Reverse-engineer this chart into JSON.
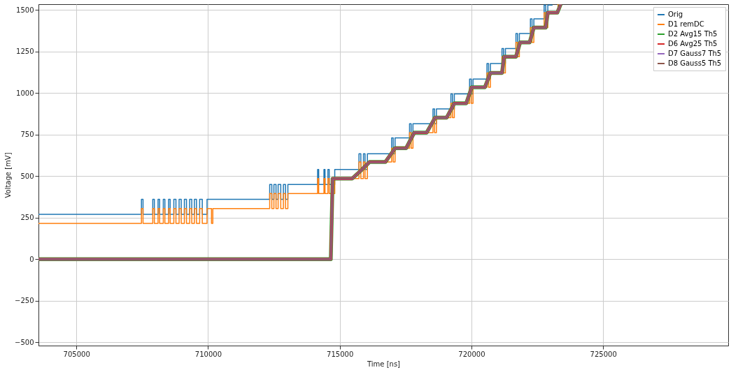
{
  "chart_data": {
    "type": "line",
    "xlabel": "Time [ns]",
    "ylabel": "Voltage [mV]",
    "xlim": [
      703560,
      729750
    ],
    "ylim": [
      -520,
      1535
    ],
    "xticks": [
      705000,
      710000,
      715000,
      720000,
      725000
    ],
    "yticks": [
      -500,
      -250,
      0,
      250,
      500,
      750,
      1000,
      1250,
      1500
    ],
    "grid": true,
    "legend": "top right",
    "marker": "none",
    "series": [
      {
        "name": "Orig",
        "color": "#1f77b4",
        "x": [
          703560,
          707470,
          707470,
          707530,
          707530,
          707900,
          707900,
          707960,
          707960,
          708100,
          708100,
          708160,
          708160,
          708300,
          708300,
          708360,
          708360,
          708500,
          708500,
          708560,
          708560,
          708700,
          708700,
          708780,
          708780,
          708900,
          708900,
          708980,
          708980,
          709100,
          709100,
          709180,
          709180,
          709300,
          709300,
          709380,
          709380,
          709480,
          709480,
          709560,
          709560,
          709680,
          709680,
          709780,
          709780,
          709960,
          709960,
          712340,
          712340,
          712420,
          712420,
          712500,
          712500,
          712580,
          712580,
          712660,
          712660,
          712760,
          712760,
          712860,
          712860,
          712940,
          712940,
          713030,
          713030,
          714160,
          714160,
          714200,
          714200,
          714400,
          714400,
          714440,
          714440,
          714550,
          714550,
          714600,
          714600,
          714810,
          714810,
          715730,
          715730,
          715800,
          715800,
          715900,
          715900,
          715960,
          715960,
          716050,
          716050,
          716970,
          716970,
          717030,
          717030,
          717100,
          717100,
          717650,
          717650,
          717710,
          717710,
          717780,
          717780,
          718540,
          718540,
          718600,
          718600,
          718670,
          718670,
          719220,
          719220,
          719280,
          719280,
          719350,
          719350,
          719930,
          719930,
          719990,
          719990,
          720060,
          720060,
          720590,
          720590,
          720650,
          720650,
          720720,
          720720,
          721160,
          721160,
          721220,
          721220,
          721290,
          721290,
          721690,
          721690,
          721750,
          721750,
          721820,
          721820,
          722240,
          722240,
          722300,
          722300,
          722370,
          722370,
          722760,
          722760,
          722820,
          722820,
          722900,
          722900,
          723080
        ],
        "values": [
          270,
          270,
          360,
          360,
          270,
          270,
          360,
          360,
          270,
          270,
          360,
          360,
          270,
          270,
          360,
          360,
          270,
          270,
          360,
          360,
          270,
          270,
          360,
          360,
          270,
          270,
          360,
          360,
          270,
          270,
          360,
          360,
          270,
          270,
          360,
          360,
          270,
          270,
          360,
          360,
          270,
          270,
          360,
          360,
          270,
          270,
          360,
          360,
          450,
          450,
          360,
          360,
          450,
          450,
          360,
          360,
          450,
          450,
          360,
          360,
          450,
          450,
          360,
          360,
          450,
          450,
          540,
          540,
          450,
          450,
          540,
          540,
          450,
          450,
          540,
          540,
          450,
          450,
          540,
          540,
          635,
          635,
          540,
          540,
          635,
          635,
          540,
          540,
          635,
          635,
          730,
          730,
          635,
          635,
          730,
          730,
          815,
          815,
          730,
          730,
          815,
          815,
          905,
          905,
          815,
          815,
          905,
          905,
          995,
          995,
          905,
          905,
          995,
          995,
          1084,
          1084,
          995,
          995,
          1084,
          1084,
          1178,
          1178,
          1084,
          1084,
          1178,
          1178,
          1268,
          1268,
          1178,
          1178,
          1268,
          1268,
          1358,
          1358,
          1268,
          1268,
          1358,
          1358,
          1447,
          1447,
          1358,
          1358,
          1447,
          1447,
          1530,
          1530,
          1447,
          1447,
          1530,
          1530
        ]
      },
      {
        "name": "D1 remDC",
        "color": "#ff7f0e",
        "x": [
          703560,
          707470,
          707470,
          707530,
          707530,
          707900,
          707900,
          707960,
          707960,
          708100,
          708100,
          708160,
          708160,
          708300,
          708300,
          708360,
          708360,
          708500,
          708500,
          708560,
          708560,
          708700,
          708700,
          708780,
          708780,
          708900,
          708900,
          708980,
          708980,
          709100,
          709100,
          709180,
          709180,
          709300,
          709300,
          709380,
          709380,
          709480,
          709480,
          709560,
          709560,
          709680,
          709680,
          709780,
          709780,
          709960,
          709960,
          710130,
          710130,
          710180,
          710180,
          712340,
          712340,
          712420,
          712420,
          712500,
          712500,
          712580,
          712580,
          712660,
          712660,
          712760,
          712760,
          712860,
          712860,
          712940,
          712940,
          713030,
          713030,
          714160,
          714160,
          714200,
          714200,
          714400,
          714400,
          714440,
          714440,
          714550,
          714550,
          714600,
          714600,
          714810,
          714810,
          715730,
          715730,
          715800,
          715800,
          715900,
          715900,
          715960,
          715960,
          716050,
          716050,
          716970,
          716970,
          717030,
          717030,
          717100,
          717100,
          717650,
          717650,
          717710,
          717710,
          717780,
          717780,
          718540,
          718540,
          718600,
          718600,
          718670,
          718670,
          719220,
          719220,
          719280,
          719280,
          719350,
          719350,
          719930,
          719930,
          719990,
          719990,
          720060,
          720060,
          720590,
          720590,
          720650,
          720650,
          720720,
          720720,
          721160,
          721160,
          721220,
          721220,
          721290,
          721290,
          721690,
          721690,
          721750,
          721750,
          721820,
          721820,
          722240,
          722240,
          722300,
          722300,
          722370,
          722370,
          722760,
          722760,
          722820,
          722820,
          722900,
          722900,
          723290,
          723290
        ],
        "values": [
          215,
          215,
          305,
          305,
          215,
          215,
          305,
          305,
          215,
          215,
          305,
          305,
          215,
          215,
          305,
          305,
          215,
          215,
          305,
          305,
          215,
          215,
          305,
          305,
          215,
          215,
          305,
          305,
          215,
          215,
          305,
          305,
          215,
          215,
          305,
          305,
          215,
          215,
          305,
          305,
          215,
          215,
          305,
          305,
          215,
          215,
          305,
          305,
          215,
          215,
          305,
          305,
          395,
          395,
          305,
          305,
          395,
          395,
          305,
          305,
          395,
          395,
          305,
          305,
          395,
          395,
          305,
          305,
          395,
          395,
          485,
          485,
          395,
          395,
          485,
          485,
          395,
          395,
          485,
          485,
          395,
          395,
          485,
          485,
          585,
          585,
          485,
          485,
          585,
          585,
          485,
          485,
          585,
          585,
          668,
          668,
          585,
          585,
          668,
          668,
          762,
          762,
          668,
          668,
          762,
          762,
          852,
          852,
          762,
          762,
          852,
          852,
          938,
          938,
          852,
          852,
          938,
          938,
          1035,
          1035,
          938,
          938,
          1035,
          1035,
          1121,
          1121,
          1035,
          1035,
          1121,
          1121,
          1219,
          1219,
          1121,
          1121,
          1219,
          1219,
          1305,
          1305,
          1219,
          1219,
          1305,
          1305,
          1394,
          1394,
          1305,
          1305,
          1394,
          1394,
          1484,
          1484,
          1394,
          1394,
          1484,
          1484,
          1535
        ]
      },
      {
        "name": "D2 Avg15 Th5",
        "color": "#2ca02c",
        "x": [
          703560,
          714660,
          714730,
          715470,
          715810,
          716130,
          716730,
          716915,
          717100,
          717520,
          717675,
          717830,
          718300,
          718460,
          718620,
          719060,
          719205,
          719350,
          719800,
          719905,
          720010,
          720510,
          720615,
          720720,
          721160,
          721200,
          721240,
          721690,
          721770,
          721850,
          722210,
          722290,
          722370,
          722820,
          722860,
          722900,
          723260,
          723390
        ],
        "values": [
          0,
          0,
          485,
          485,
          535,
          585,
          585,
          626,
          668,
          668,
          715,
          762,
          762,
          807,
          852,
          852,
          895,
          938,
          938,
          986,
          1035,
          1035,
          1078,
          1121,
          1121,
          1170,
          1219,
          1219,
          1262,
          1305,
          1305,
          1350,
          1394,
          1394,
          1439,
          1484,
          1484,
          1535
        ]
      },
      {
        "name": "D6 Avg25 Th5",
        "color": "#d62728",
        "x": [
          703560,
          714660,
          714730,
          715470,
          715810,
          716130,
          716730,
          716915,
          717100,
          717520,
          717675,
          717830,
          718300,
          718460,
          718620,
          719060,
          719205,
          719350,
          719800,
          719905,
          720010,
          720510,
          720615,
          720720,
          721160,
          721200,
          721240,
          721690,
          721770,
          721850,
          722210,
          722290,
          722370,
          722820,
          722860,
          722900,
          723260,
          723390
        ],
        "values": [
          0,
          0,
          485,
          485,
          535,
          585,
          585,
          626,
          668,
          668,
          715,
          762,
          762,
          807,
          852,
          852,
          895,
          938,
          938,
          986,
          1035,
          1035,
          1078,
          1121,
          1121,
          1170,
          1219,
          1219,
          1262,
          1305,
          1305,
          1350,
          1394,
          1394,
          1439,
          1484,
          1484,
          1535
        ]
      },
      {
        "name": "D7 Gauss7 Th5",
        "color": "#9467bd",
        "x": [
          703560,
          714660,
          714730,
          715470,
          715810,
          716130,
          716730,
          716915,
          717100,
          717520,
          717675,
          717830,
          718300,
          718460,
          718620,
          719060,
          719205,
          719350,
          719800,
          719905,
          720010,
          720510,
          720615,
          720720,
          721160,
          721200,
          721240,
          721690,
          721770,
          721850,
          722210,
          722290,
          722370,
          722820,
          722860,
          722900,
          723260,
          723390
        ],
        "values": [
          0,
          0,
          485,
          485,
          535,
          585,
          585,
          626,
          668,
          668,
          715,
          762,
          762,
          807,
          852,
          852,
          895,
          938,
          938,
          986,
          1035,
          1035,
          1078,
          1121,
          1121,
          1170,
          1219,
          1219,
          1262,
          1305,
          1305,
          1350,
          1394,
          1394,
          1439,
          1484,
          1484,
          1535
        ]
      },
      {
        "name": "D8 Gauss5 Th5",
        "color": "#8c564b",
        "x": [
          703560,
          714660,
          714730,
          715470,
          715810,
          716130,
          716730,
          716915,
          717100,
          717520,
          717675,
          717830,
          718300,
          718460,
          718620,
          719060,
          719205,
          719350,
          719800,
          719905,
          720010,
          720510,
          720615,
          720720,
          721160,
          721200,
          721240,
          721690,
          721770,
          721850,
          722210,
          722290,
          722370,
          722820,
          722860,
          722900,
          723260,
          723390
        ],
        "values": [
          0,
          0,
          485,
          485,
          535,
          585,
          585,
          626,
          668,
          668,
          715,
          762,
          762,
          807,
          852,
          852,
          895,
          938,
          938,
          986,
          1035,
          1035,
          1078,
          1121,
          1121,
          1170,
          1219,
          1219,
          1262,
          1305,
          1305,
          1350,
          1394,
          1394,
          1439,
          1484,
          1484,
          1535
        ]
      }
    ]
  }
}
